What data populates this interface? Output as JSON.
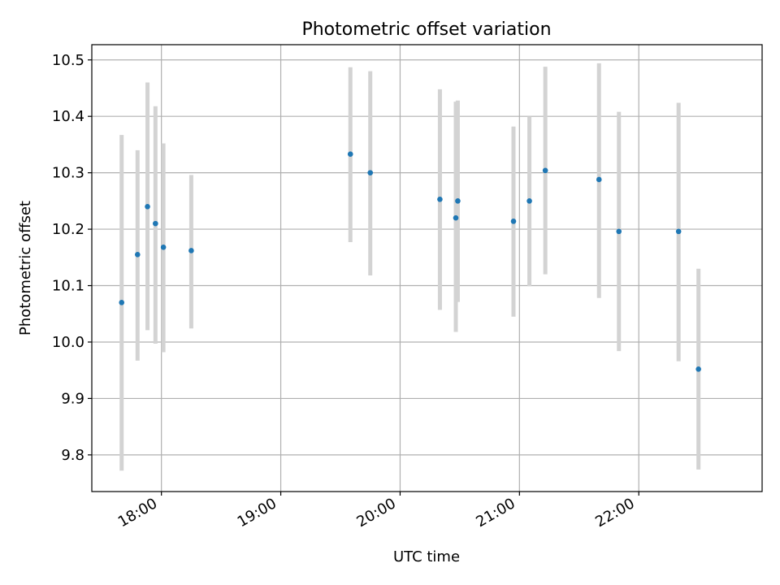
{
  "chart_data": {
    "type": "scatter",
    "title": "Photometric offset variation",
    "xlabel": "UTC time",
    "ylabel": "Photometric offset",
    "grid": true,
    "x_ticks": [
      "18:00",
      "19:00",
      "20:00",
      "21:00",
      "22:00"
    ],
    "x_range": [
      "17:25",
      "23:02"
    ],
    "y_ticks": [
      9.8,
      9.9,
      10.0,
      10.1,
      10.2,
      10.3,
      10.4,
      10.5
    ],
    "ylim": [
      9.735,
      10.527
    ],
    "colors": {
      "points": "#1f77b4",
      "error_bars": "#d3d3d3",
      "grid": "#b0b0b0"
    },
    "series": [
      {
        "x": [
          "17:40",
          "17:48",
          "17:53",
          "17:57",
          "18:01",
          "18:15",
          "19:35",
          "19:45",
          "20:20",
          "20:28",
          "20:29",
          "20:57",
          "21:05",
          "21:13",
          "21:40",
          "21:50",
          "22:20",
          "22:30"
        ],
        "y": [
          10.07,
          10.155,
          10.24,
          10.21,
          10.168,
          10.162,
          10.333,
          10.3,
          10.253,
          10.22,
          10.25,
          10.214,
          10.25,
          10.304,
          10.288,
          10.196,
          10.196,
          9.952
        ],
        "y_low": [
          9.772,
          9.967,
          10.021,
          9.997,
          9.982,
          10.024,
          10.177,
          10.118,
          10.057,
          10.018,
          10.071,
          10.045,
          10.099,
          10.12,
          10.078,
          9.984,
          9.966,
          9.774
        ],
        "y_high": [
          10.367,
          10.34,
          10.46,
          10.418,
          10.352,
          10.296,
          10.487,
          10.48,
          10.448,
          10.426,
          10.428,
          10.382,
          10.4,
          10.488,
          10.494,
          10.408,
          10.424,
          10.13
        ]
      }
    ]
  }
}
